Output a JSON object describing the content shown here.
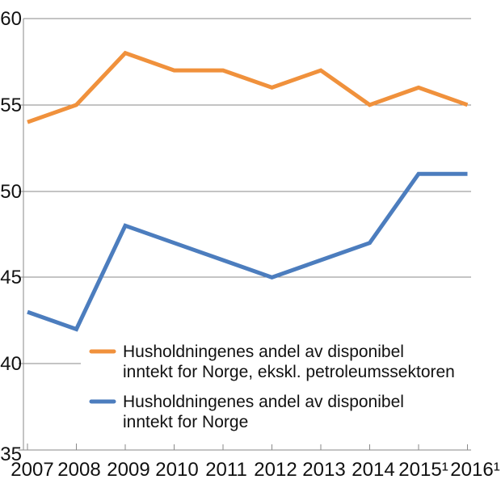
{
  "chart_data": {
    "type": "line",
    "categories": [
      "2007",
      "2008",
      "2009",
      "2010",
      "2011",
      "2012",
      "2013",
      "2014",
      "2015¹",
      "2016¹"
    ],
    "series": [
      {
        "name": "Husholdningenes andel av disponibel inntekt for Norge, ekskl. petroleumssektoren",
        "color": "#F0913C",
        "values": [
          54,
          55,
          58,
          57,
          57,
          56,
          57,
          55,
          56,
          55
        ]
      },
      {
        "name": "Husholdningenes andel av disponibel inntekt for Norge",
        "color": "#4C7DBE",
        "values": [
          43,
          42,
          48,
          47,
          46,
          45,
          46,
          47,
          51,
          51
        ]
      }
    ],
    "ylim": [
      35,
      60
    ],
    "yticks": [
      60,
      55,
      50,
      45,
      40,
      35
    ],
    "grid": "horizontal",
    "grid_color": "#8a8a8a",
    "legend_position": "inside-bottom-left",
    "legend": [
      {
        "line1": "Husholdningenes andel av disponibel",
        "line2": "inntekt for Norge, ekskl. petroleumssektoren",
        "color": "#F0913C"
      },
      {
        "line1": "Husholdningenes andel av disponibel",
        "line2": "inntekt for Norge",
        "color": "#4C7DBE"
      }
    ]
  }
}
